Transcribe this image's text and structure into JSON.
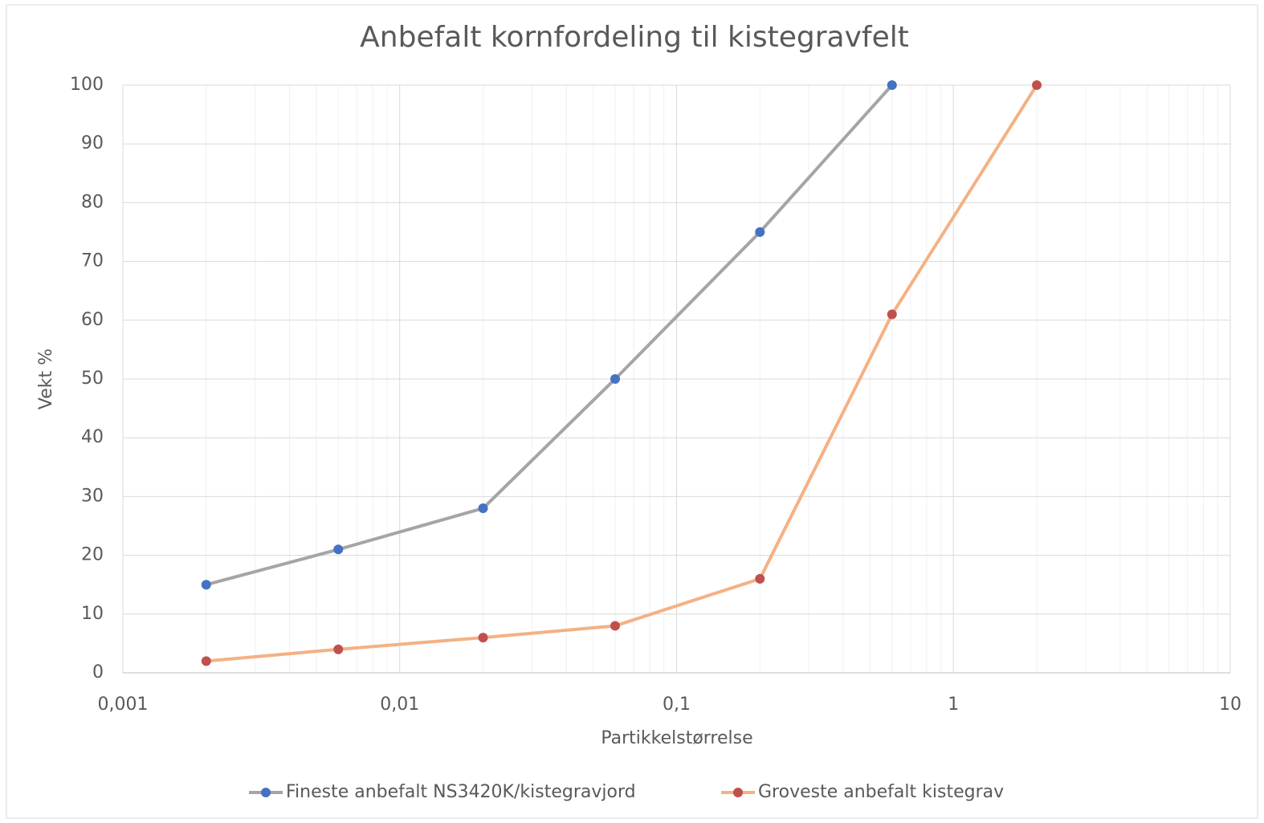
{
  "chart_data": {
    "type": "line",
    "title": "Anbefalt kornfordeling til kistegravfelt",
    "xlabel": "Partikkelstørrelse",
    "ylabel": "Vekt %",
    "xscale": "log",
    "xlim": [
      0.001,
      10
    ],
    "xticks": [
      {
        "value": 0.001,
        "label": "0,001"
      },
      {
        "value": 0.01,
        "label": "0,01"
      },
      {
        "value": 0.1,
        "label": "0,1"
      },
      1,
      10
    ],
    "ylim": [
      0,
      100
    ],
    "yticks": [
      0,
      10,
      20,
      30,
      40,
      50,
      60,
      70,
      80,
      90,
      100
    ],
    "grid": true,
    "minor_grid": true,
    "legend": "bottom",
    "series": [
      {
        "name": "Fineste anbefalt NS3420K/kistegravjord",
        "color": "#a5a5a5",
        "marker_color": "#4472c4",
        "x": [
          0.002,
          0.006,
          0.02,
          0.06,
          0.2,
          0.6
        ],
        "values": [
          15,
          21,
          28,
          50,
          75,
          100
        ]
      },
      {
        "name": "Groveste anbefalt kistegrav",
        "color": "#f4b183",
        "marker_color": "#c0504d",
        "x": [
          0.002,
          0.006,
          0.02,
          0.06,
          0.2,
          0.6,
          2
        ],
        "values": [
          2,
          4,
          6,
          8,
          16,
          61,
          100
        ]
      }
    ]
  }
}
